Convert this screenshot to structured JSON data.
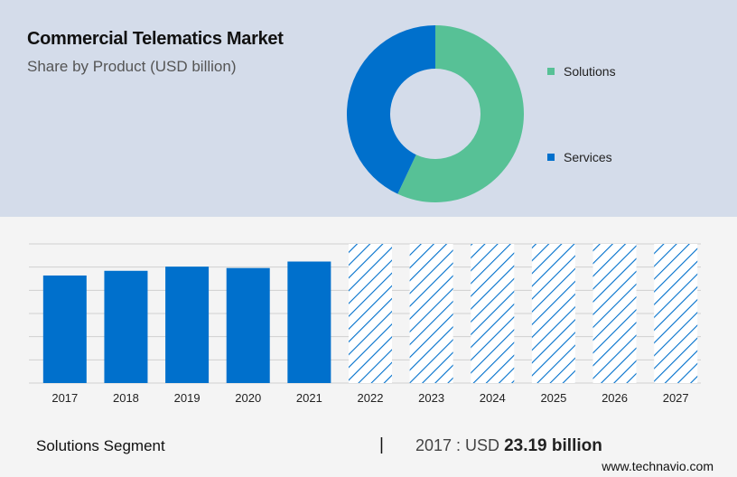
{
  "title": "Commercial Telematics Market",
  "subtitle": "Share by Product (USD billion)",
  "legend": [
    {
      "label": "Solutions",
      "color": "#57c196"
    },
    {
      "label": "Services",
      "color": "#0070cc"
    }
  ],
  "chart_data": [
    {
      "type": "pie",
      "style": "donut",
      "slices": [
        {
          "label": "Solutions",
          "value": 57,
          "color": "#57c196"
        },
        {
          "label": "Services",
          "value": 43,
          "color": "#0070cc"
        }
      ]
    },
    {
      "type": "bar",
      "categories": [
        "2017",
        "2018",
        "2019",
        "2020",
        "2021",
        "2022",
        "2023",
        "2024",
        "2025",
        "2026",
        "2027"
      ],
      "values": [
        23.19,
        24.2,
        25.1,
        24.8,
        26.2,
        null,
        null,
        null,
        null,
        null,
        null
      ],
      "forecast_categories": [
        "2022",
        "2023",
        "2024",
        "2025",
        "2026",
        "2027"
      ],
      "bar_color": "#0070cc",
      "forecast_style": "hatched",
      "ylim": [
        0,
        30
      ],
      "grid": true
    }
  ],
  "footer": {
    "segment": "Solutions Segment",
    "divider": "|",
    "year_prefix": "2017 : USD",
    "value": "23.19 billion",
    "source": "www.technavio.com"
  }
}
